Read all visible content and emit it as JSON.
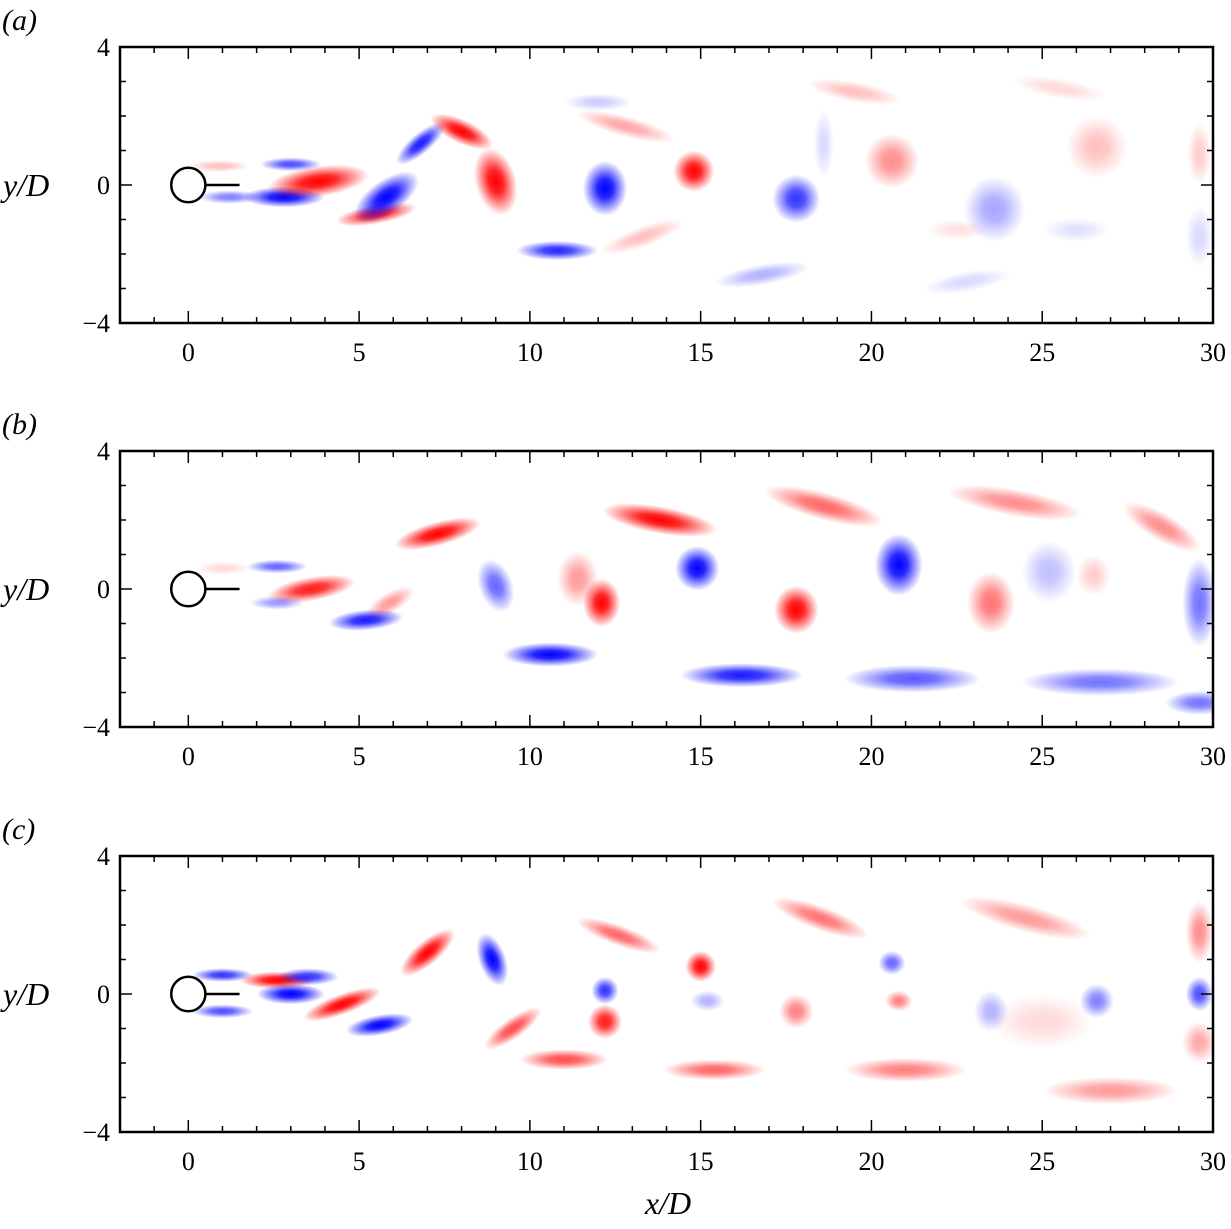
{
  "chart_data": [
    {
      "type": "heatmap",
      "panel_label": "(a)",
      "xlim": [
        -2,
        30
      ],
      "ylim": [
        -4,
        4
      ],
      "xticks": [
        0,
        5,
        10,
        15,
        20,
        25,
        30
      ],
      "yticks": [
        -4,
        0,
        4
      ],
      "ylabel": "y/D",
      "xlabel": "",
      "cylinder": {
        "x": 0,
        "y": 0,
        "diameter": 1,
        "plate_end_x": 1.5
      },
      "colormap": {
        "positive": "#ff0000",
        "negative": "#0000ff",
        "zero": "#ffffff"
      },
      "vortices": [
        {
          "x": 0.9,
          "y": 0.55,
          "rx": 0.9,
          "ry": 0.18,
          "rot": 0,
          "sign": 1,
          "strength": 0.25
        },
        {
          "x": 1.2,
          "y": -0.35,
          "rx": 0.9,
          "ry": 0.2,
          "rot": 0,
          "sign": -1,
          "strength": 0.5
        },
        {
          "x": 2.8,
          "y": -0.35,
          "rx": 1.2,
          "ry": 0.3,
          "rot": 0,
          "sign": -1,
          "strength": 1
        },
        {
          "x": 3.0,
          "y": 0.6,
          "rx": 0.9,
          "ry": 0.2,
          "rot": 0,
          "sign": -1,
          "strength": 0.7
        },
        {
          "x": 3.8,
          "y": 0.1,
          "rx": 1.5,
          "ry": 0.45,
          "rot": -8,
          "sign": 1,
          "strength": 1
        },
        {
          "x": 5.5,
          "y": -0.85,
          "rx": 1.2,
          "ry": 0.28,
          "rot": -10,
          "sign": 1,
          "strength": 0.9
        },
        {
          "x": 5.8,
          "y": -0.35,
          "rx": 1.1,
          "ry": 0.5,
          "rot": -35,
          "sign": -1,
          "strength": 1
        },
        {
          "x": 6.8,
          "y": 1.2,
          "rx": 0.9,
          "ry": 0.3,
          "rot": -40,
          "sign": -1,
          "strength": 0.9
        },
        {
          "x": 8.0,
          "y": 1.55,
          "rx": 1.0,
          "ry": 0.35,
          "rot": 25,
          "sign": 1,
          "strength": 1
        },
        {
          "x": 9.0,
          "y": 0.1,
          "rx": 0.6,
          "ry": 1.0,
          "rot": -15,
          "sign": 1,
          "strength": 1
        },
        {
          "x": 10.8,
          "y": -1.9,
          "rx": 1.2,
          "ry": 0.28,
          "rot": 0,
          "sign": -1,
          "strength": 0.85
        },
        {
          "x": 12.2,
          "y": -0.1,
          "rx": 0.65,
          "ry": 0.8,
          "rot": 0,
          "sign": -1,
          "strength": 1
        },
        {
          "x": 12.8,
          "y": 1.7,
          "rx": 1.5,
          "ry": 0.3,
          "rot": 15,
          "sign": 1,
          "strength": 0.35
        },
        {
          "x": 13.3,
          "y": -1.5,
          "rx": 1.3,
          "ry": 0.3,
          "rot": -20,
          "sign": 1,
          "strength": 0.25
        },
        {
          "x": 14.8,
          "y": 0.4,
          "rx": 0.6,
          "ry": 0.6,
          "rot": 0,
          "sign": 1,
          "strength": 1
        },
        {
          "x": 12.0,
          "y": 2.4,
          "rx": 1.0,
          "ry": 0.25,
          "rot": 0,
          "sign": -1,
          "strength": 0.2
        },
        {
          "x": 16.8,
          "y": -2.6,
          "rx": 1.4,
          "ry": 0.3,
          "rot": -10,
          "sign": -1,
          "strength": 0.3
        },
        {
          "x": 17.8,
          "y": -0.4,
          "rx": 0.7,
          "ry": 0.7,
          "rot": 0,
          "sign": -1,
          "strength": 0.8
        },
        {
          "x": 18.6,
          "y": 1.2,
          "rx": 0.3,
          "ry": 1.0,
          "rot": 0,
          "sign": -1,
          "strength": 0.15
        },
        {
          "x": 19.5,
          "y": 2.7,
          "rx": 1.4,
          "ry": 0.3,
          "rot": 10,
          "sign": 1,
          "strength": 0.25
        },
        {
          "x": 20.6,
          "y": 0.7,
          "rx": 0.8,
          "ry": 0.8,
          "rot": 0,
          "sign": 1,
          "strength": 0.45
        },
        {
          "x": 22.5,
          "y": -1.3,
          "rx": 0.9,
          "ry": 0.3,
          "rot": 0,
          "sign": 1,
          "strength": 0.12
        },
        {
          "x": 22.8,
          "y": -2.8,
          "rx": 1.3,
          "ry": 0.3,
          "rot": -10,
          "sign": -1,
          "strength": 0.15
        },
        {
          "x": 23.6,
          "y": -0.7,
          "rx": 0.9,
          "ry": 0.95,
          "rot": 0,
          "sign": -1,
          "strength": 0.35
        },
        {
          "x": 25.5,
          "y": 2.8,
          "rx": 1.4,
          "ry": 0.3,
          "rot": 10,
          "sign": 1,
          "strength": 0.15
        },
        {
          "x": 26.6,
          "y": 1.1,
          "rx": 0.9,
          "ry": 0.9,
          "rot": 0,
          "sign": 1,
          "strength": 0.25
        },
        {
          "x": 26.0,
          "y": -1.3,
          "rx": 1.0,
          "ry": 0.35,
          "rot": 0,
          "sign": -1,
          "strength": 0.12
        },
        {
          "x": 29.6,
          "y": 0.9,
          "rx": 0.35,
          "ry": 0.9,
          "rot": 0,
          "sign": 1,
          "strength": 0.2
        },
        {
          "x": 29.6,
          "y": -1.5,
          "rx": 0.4,
          "ry": 0.9,
          "rot": 0,
          "sign": -1,
          "strength": 0.15
        }
      ]
    },
    {
      "type": "heatmap",
      "panel_label": "(b)",
      "xlim": [
        -2,
        30
      ],
      "ylim": [
        -4,
        4
      ],
      "xticks": [
        0,
        5,
        10,
        15,
        20,
        25,
        30
      ],
      "yticks": [
        -4,
        0,
        4
      ],
      "ylabel": "y/D",
      "xlabel": "",
      "cylinder": {
        "x": 0,
        "y": 0,
        "diameter": 1,
        "plate_end_x": 1.5
      },
      "colormap": {
        "positive": "#ff0000",
        "negative": "#0000ff",
        "zero": "#ffffff"
      },
      "vortices": [
        {
          "x": 1.0,
          "y": 0.6,
          "rx": 0.8,
          "ry": 0.2,
          "rot": 0,
          "sign": 1,
          "strength": 0.15
        },
        {
          "x": 2.6,
          "y": 0.65,
          "rx": 0.9,
          "ry": 0.2,
          "rot": 0,
          "sign": -1,
          "strength": 0.6
        },
        {
          "x": 3.6,
          "y": 0.0,
          "rx": 1.3,
          "ry": 0.35,
          "rot": -10,
          "sign": 1,
          "strength": 0.9
        },
        {
          "x": 2.6,
          "y": -0.4,
          "rx": 0.8,
          "ry": 0.2,
          "rot": 0,
          "sign": -1,
          "strength": 0.4
        },
        {
          "x": 5.2,
          "y": -0.9,
          "rx": 1.1,
          "ry": 0.3,
          "rot": -5,
          "sign": -1,
          "strength": 0.9
        },
        {
          "x": 5.9,
          "y": -0.4,
          "rx": 0.8,
          "ry": 0.3,
          "rot": -30,
          "sign": 1,
          "strength": 0.4
        },
        {
          "x": 7.3,
          "y": 1.6,
          "rx": 1.3,
          "ry": 0.35,
          "rot": -15,
          "sign": 1,
          "strength": 1
        },
        {
          "x": 9.0,
          "y": 0.1,
          "rx": 0.5,
          "ry": 0.8,
          "rot": -20,
          "sign": -1,
          "strength": 0.6
        },
        {
          "x": 10.6,
          "y": -1.9,
          "rx": 1.4,
          "ry": 0.35,
          "rot": 0,
          "sign": -1,
          "strength": 1
        },
        {
          "x": 11.4,
          "y": 0.3,
          "rx": 0.6,
          "ry": 0.8,
          "rot": 0,
          "sign": 1,
          "strength": 0.4
        },
        {
          "x": 12.1,
          "y": -0.4,
          "rx": 0.55,
          "ry": 0.7,
          "rot": 0,
          "sign": 1,
          "strength": 1
        },
        {
          "x": 13.8,
          "y": 2.0,
          "rx": 1.7,
          "ry": 0.4,
          "rot": 10,
          "sign": 1,
          "strength": 1
        },
        {
          "x": 14.9,
          "y": 0.6,
          "rx": 0.65,
          "ry": 0.65,
          "rot": 0,
          "sign": -1,
          "strength": 1
        },
        {
          "x": 16.2,
          "y": -2.5,
          "rx": 1.8,
          "ry": 0.35,
          "rot": 0,
          "sign": -1,
          "strength": 0.9
        },
        {
          "x": 17.8,
          "y": -0.6,
          "rx": 0.65,
          "ry": 0.7,
          "rot": 0,
          "sign": 1,
          "strength": 1
        },
        {
          "x": 18.6,
          "y": 2.4,
          "rx": 1.8,
          "ry": 0.4,
          "rot": 15,
          "sign": 1,
          "strength": 0.6
        },
        {
          "x": 20.8,
          "y": 0.7,
          "rx": 0.7,
          "ry": 0.9,
          "rot": 0,
          "sign": -1,
          "strength": 1
        },
        {
          "x": 21.2,
          "y": -2.6,
          "rx": 2.0,
          "ry": 0.4,
          "rot": 0,
          "sign": -1,
          "strength": 0.65
        },
        {
          "x": 23.5,
          "y": -0.4,
          "rx": 0.7,
          "ry": 0.9,
          "rot": 0,
          "sign": 1,
          "strength": 0.55
        },
        {
          "x": 24.2,
          "y": 2.5,
          "rx": 2.0,
          "ry": 0.4,
          "rot": 10,
          "sign": 1,
          "strength": 0.45
        },
        {
          "x": 25.2,
          "y": 0.5,
          "rx": 0.8,
          "ry": 0.9,
          "rot": 0,
          "sign": -1,
          "strength": 0.25
        },
        {
          "x": 26.5,
          "y": 0.4,
          "rx": 0.5,
          "ry": 0.6,
          "rot": 0,
          "sign": 1,
          "strength": 0.2
        },
        {
          "x": 26.7,
          "y": -2.7,
          "rx": 2.3,
          "ry": 0.4,
          "rot": 0,
          "sign": -1,
          "strength": 0.55
        },
        {
          "x": 28.5,
          "y": 1.8,
          "rx": 1.3,
          "ry": 0.4,
          "rot": 30,
          "sign": 1,
          "strength": 0.45
        },
        {
          "x": 29.6,
          "y": -0.4,
          "rx": 0.5,
          "ry": 1.3,
          "rot": 0,
          "sign": -1,
          "strength": 0.55
        },
        {
          "x": 29.6,
          "y": -3.3,
          "rx": 1.0,
          "ry": 0.35,
          "rot": 0,
          "sign": -1,
          "strength": 0.55
        }
      ]
    },
    {
      "type": "heatmap",
      "panel_label": "(c)",
      "xlim": [
        -2,
        30
      ],
      "ylim": [
        -4,
        4
      ],
      "xticks": [
        0,
        5,
        10,
        15,
        20,
        25,
        30
      ],
      "yticks": [
        -4,
        0,
        4
      ],
      "ylabel": "y/D",
      "xlabel": "x/D",
      "cylinder": {
        "x": 0,
        "y": 0,
        "diameter": 1,
        "plate_end_x": 1.5
      },
      "colormap": {
        "positive": "#ff0000",
        "negative": "#0000ff",
        "zero": "#ffffff"
      },
      "vortices": [
        {
          "x": 1.0,
          "y": 0.55,
          "rx": 0.9,
          "ry": 0.2,
          "rot": 0,
          "sign": -1,
          "strength": 0.8
        },
        {
          "x": 1.0,
          "y": -0.5,
          "rx": 0.9,
          "ry": 0.2,
          "rot": 0,
          "sign": -1,
          "strength": 0.7
        },
        {
          "x": 2.6,
          "y": 0.4,
          "rx": 1.1,
          "ry": 0.25,
          "rot": 0,
          "sign": 1,
          "strength": 1
        },
        {
          "x": 3.0,
          "y": 0.0,
          "rx": 1.0,
          "ry": 0.3,
          "rot": 0,
          "sign": -1,
          "strength": 1
        },
        {
          "x": 3.5,
          "y": 0.5,
          "rx": 0.9,
          "ry": 0.25,
          "rot": 0,
          "sign": -1,
          "strength": 0.8
        },
        {
          "x": 4.5,
          "y": -0.3,
          "rx": 1.2,
          "ry": 0.3,
          "rot": -20,
          "sign": 1,
          "strength": 1
        },
        {
          "x": 5.6,
          "y": -0.9,
          "rx": 1.0,
          "ry": 0.3,
          "rot": -10,
          "sign": -1,
          "strength": 1
        },
        {
          "x": 7.0,
          "y": 1.2,
          "rx": 1.0,
          "ry": 0.35,
          "rot": -40,
          "sign": 1,
          "strength": 1
        },
        {
          "x": 8.9,
          "y": 1.0,
          "rx": 0.4,
          "ry": 0.8,
          "rot": -20,
          "sign": -1,
          "strength": 1
        },
        {
          "x": 9.5,
          "y": -1.0,
          "rx": 1.0,
          "ry": 0.3,
          "rot": -35,
          "sign": 1,
          "strength": 0.7
        },
        {
          "x": 11.0,
          "y": -1.9,
          "rx": 1.3,
          "ry": 0.3,
          "rot": 0,
          "sign": 1,
          "strength": 0.7
        },
        {
          "x": 12.2,
          "y": 0.1,
          "rx": 0.4,
          "ry": 0.4,
          "rot": 0,
          "sign": -1,
          "strength": 0.8
        },
        {
          "x": 12.2,
          "y": -0.8,
          "rx": 0.5,
          "ry": 0.5,
          "rot": 0,
          "sign": 1,
          "strength": 0.9
        },
        {
          "x": 12.6,
          "y": 1.7,
          "rx": 1.3,
          "ry": 0.3,
          "rot": 20,
          "sign": 1,
          "strength": 0.6
        },
        {
          "x": 15.0,
          "y": 0.8,
          "rx": 0.45,
          "ry": 0.45,
          "rot": 0,
          "sign": 1,
          "strength": 1
        },
        {
          "x": 15.2,
          "y": -0.2,
          "rx": 0.5,
          "ry": 0.3,
          "rot": 0,
          "sign": -1,
          "strength": 0.3
        },
        {
          "x": 15.4,
          "y": -2.2,
          "rx": 1.5,
          "ry": 0.3,
          "rot": 0,
          "sign": 1,
          "strength": 0.6
        },
        {
          "x": 17.8,
          "y": -0.5,
          "rx": 0.5,
          "ry": 0.5,
          "rot": 0,
          "sign": 1,
          "strength": 0.5
        },
        {
          "x": 18.5,
          "y": 2.2,
          "rx": 1.5,
          "ry": 0.35,
          "rot": 20,
          "sign": 1,
          "strength": 0.55
        },
        {
          "x": 20.6,
          "y": 0.9,
          "rx": 0.4,
          "ry": 0.35,
          "rot": 0,
          "sign": -1,
          "strength": 0.6
        },
        {
          "x": 20.8,
          "y": -0.2,
          "rx": 0.4,
          "ry": 0.3,
          "rot": 0,
          "sign": 1,
          "strength": 0.5
        },
        {
          "x": 21.0,
          "y": -2.2,
          "rx": 1.8,
          "ry": 0.35,
          "rot": 0,
          "sign": 1,
          "strength": 0.5
        },
        {
          "x": 23.5,
          "y": -0.5,
          "rx": 0.5,
          "ry": 0.6,
          "rot": 0,
          "sign": -1,
          "strength": 0.3
        },
        {
          "x": 24.5,
          "y": 2.2,
          "rx": 2.0,
          "ry": 0.4,
          "rot": 15,
          "sign": 1,
          "strength": 0.4
        },
        {
          "x": 25.0,
          "y": -0.8,
          "rx": 1.5,
          "ry": 0.8,
          "rot": 0,
          "sign": 1,
          "strength": 0.15
        },
        {
          "x": 26.6,
          "y": -0.2,
          "rx": 0.5,
          "ry": 0.5,
          "rot": 0,
          "sign": -1,
          "strength": 0.5
        },
        {
          "x": 27.0,
          "y": -2.8,
          "rx": 2.0,
          "ry": 0.4,
          "rot": 0,
          "sign": 1,
          "strength": 0.4
        },
        {
          "x": 29.6,
          "y": 0.0,
          "rx": 0.4,
          "ry": 0.5,
          "rot": 0,
          "sign": -1,
          "strength": 0.7
        },
        {
          "x": 29.6,
          "y": 1.8,
          "rx": 0.4,
          "ry": 0.9,
          "rot": 0,
          "sign": 1,
          "strength": 0.45
        },
        {
          "x": 29.6,
          "y": -1.4,
          "rx": 0.5,
          "ry": 0.6,
          "rot": 0,
          "sign": 1,
          "strength": 0.35
        }
      ]
    }
  ]
}
